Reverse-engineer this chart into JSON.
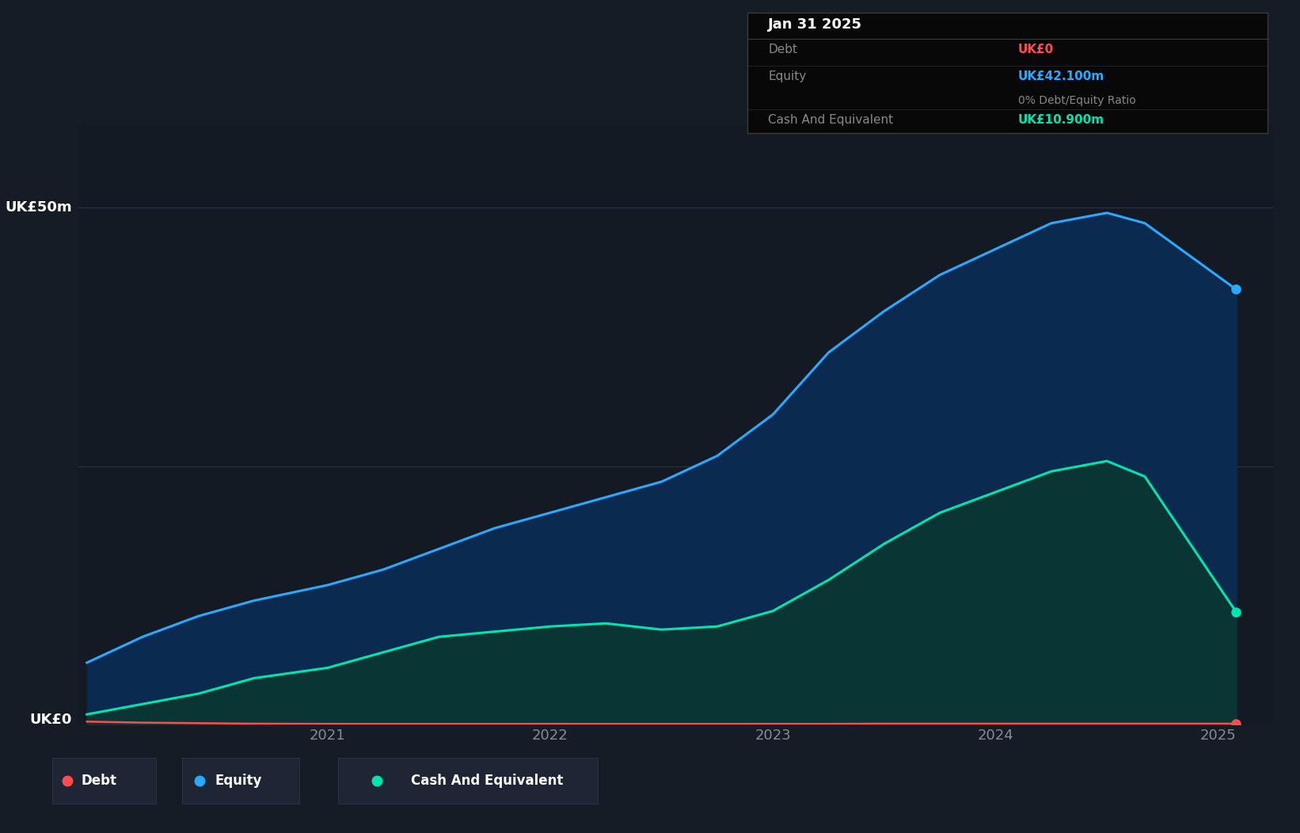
{
  "background_color": "#161c26",
  "plot_bg_color": "#141a24",
  "grid_color": "#2a3348",
  "ylabel_50": "UK£50m",
  "ylabel_0": "UK£0",
  "x_years": [
    2019.92,
    2020.17,
    2020.42,
    2020.67,
    2021.0,
    2021.25,
    2021.5,
    2021.75,
    2022.0,
    2022.25,
    2022.5,
    2022.75,
    2023.0,
    2023.25,
    2023.5,
    2023.75,
    2024.0,
    2024.25,
    2024.5,
    2024.67,
    2025.08
  ],
  "debt": [
    0.3,
    0.2,
    0.15,
    0.1,
    0.08,
    0.08,
    0.08,
    0.08,
    0.08,
    0.08,
    0.08,
    0.08,
    0.08,
    0.08,
    0.1,
    0.1,
    0.1,
    0.1,
    0.1,
    0.1,
    0.1
  ],
  "equity": [
    6.0,
    8.5,
    10.5,
    12.0,
    13.5,
    15.0,
    17.0,
    19.0,
    20.5,
    22.0,
    23.5,
    26.0,
    30.0,
    36.0,
    40.0,
    43.5,
    46.0,
    48.5,
    49.5,
    48.5,
    42.1
  ],
  "cash": [
    1.0,
    2.0,
    3.0,
    4.5,
    5.5,
    7.0,
    8.5,
    9.0,
    9.5,
    9.8,
    9.2,
    9.5,
    11.0,
    14.0,
    17.5,
    20.5,
    22.5,
    24.5,
    25.5,
    24.0,
    10.9
  ],
  "debt_color": "#ff4d4d",
  "equity_color": "#29aaff",
  "cash_color": "#00e5b0",
  "equity_fill": "#0a2a50",
  "cash_fill": "#0a3535",
  "tooltip_bg": "#080808",
  "tooltip_border": "#3a3a3a",
  "tooltip_title": "Jan 31 2025",
  "tooltip_debt_label": "Debt",
  "tooltip_debt_value": "UK£0",
  "tooltip_equity_label": "Equity",
  "tooltip_equity_value": "UK£42.100m",
  "tooltip_ratio": "0% Debt/Equity Ratio",
  "tooltip_cash_label": "Cash And Equivalent",
  "tooltip_cash_value": "UK£10.900m",
  "legend_items": [
    "Debt",
    "Equity",
    "Cash And Equivalent"
  ],
  "legend_bg": "#1e2535",
  "legend_border": "#2a3040",
  "ylim": [
    0,
    58
  ],
  "xlim": [
    2019.88,
    2025.25
  ],
  "ytick_50_pos": 50,
  "ytick_25_pos": 25,
  "ytick_0_pos": 0
}
